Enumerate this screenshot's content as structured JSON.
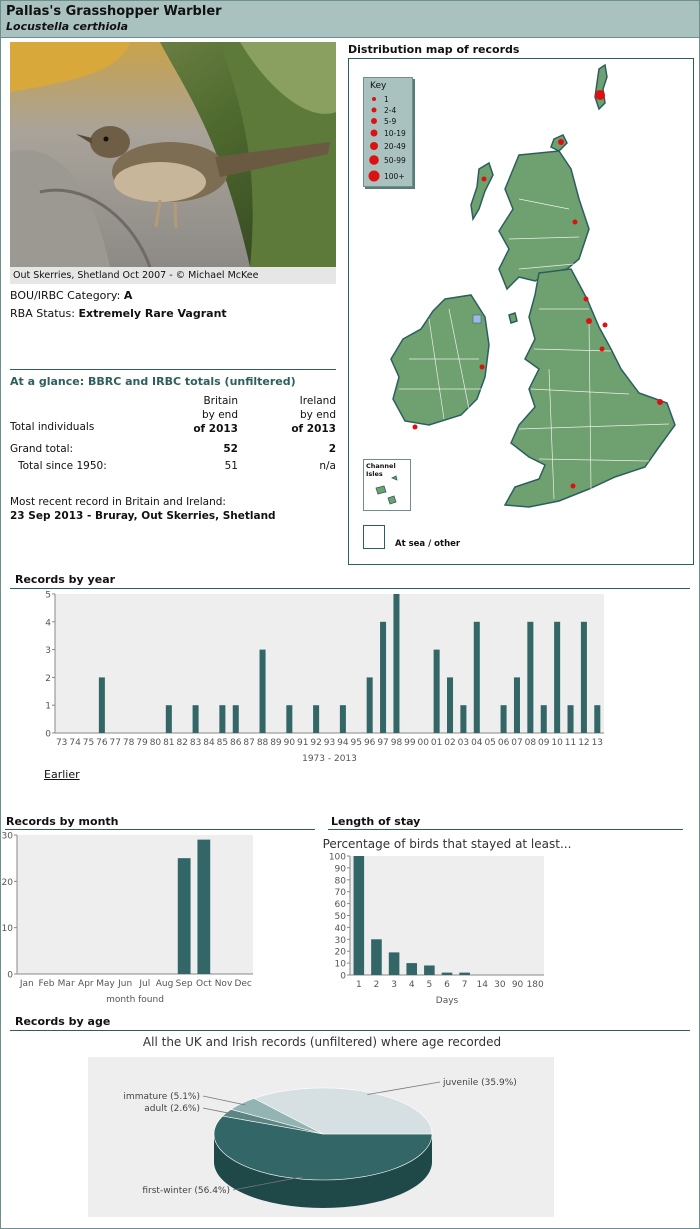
{
  "header": {
    "title": "Pallas's Grasshopper Warbler",
    "latin": "Locustella certhiola"
  },
  "photo": {
    "caption": "Out Skerries, Shetland Oct 2007 - © Michael McKee"
  },
  "category": {
    "label": "BOU/IRBC Category:",
    "value": "A"
  },
  "status": {
    "label": "RBA Status:",
    "value": "Extremely Rare Vagrant"
  },
  "glance": {
    "title": "At a glance: BBRC and IRBC totals (unfiltered)",
    "col_britain": [
      "Britain",
      "by end",
      "of 2013"
    ],
    "col_ireland": [
      "Ireland",
      "by end",
      "of 2013"
    ],
    "row_header": "Total individuals",
    "rows": [
      {
        "label": "Grand total:",
        "britain": "52",
        "ireland": "2"
      },
      {
        "label": "Total since 1950:",
        "britain": "51",
        "ireland": "n/a"
      }
    ],
    "recent_label": "Most recent record in Britain and Ireland:",
    "recent_value": "23 Sep 2013 - Bruray, Out Skerries, Shetland"
  },
  "map": {
    "title": "Distribution map of records",
    "key_title": "Key",
    "key_items": [
      "1",
      "2-4",
      "5-9",
      "10-19",
      "20-49",
      "50-99",
      "100+"
    ],
    "channel_label": "Channel Isles",
    "at_sea_label": "At sea / other",
    "colors": {
      "land": "#6fa06f",
      "border": "#2d5e5e",
      "dot": "#dd1111"
    }
  },
  "year_chart": {
    "title": "Records by year",
    "earlier_link": "Earlier"
  },
  "month_chart": {
    "title": "Records by month"
  },
  "stay_chart": {
    "title": "Length of stay"
  },
  "age_chart": {
    "title": "Records by age"
  },
  "chart_data": [
    {
      "type": "bar",
      "title": "",
      "xlabel": "1973 - 2013",
      "ylabel": "",
      "ylim": [
        0,
        5
      ],
      "yticks": [
        0,
        1,
        2,
        3,
        4,
        5
      ],
      "categories": [
        "73",
        "74",
        "75",
        "76",
        "77",
        "78",
        "79",
        "80",
        "81",
        "82",
        "83",
        "84",
        "85",
        "86",
        "87",
        "88",
        "89",
        "90",
        "91",
        "92",
        "93",
        "94",
        "95",
        "96",
        "97",
        "98",
        "99",
        "00",
        "01",
        "02",
        "03",
        "04",
        "05",
        "06",
        "07",
        "08",
        "09",
        "10",
        "11",
        "12",
        "13"
      ],
      "values": [
        0,
        0,
        0,
        2,
        0,
        0,
        0,
        0,
        1,
        0,
        1,
        0,
        1,
        1,
        0,
        3,
        0,
        1,
        0,
        1,
        0,
        1,
        0,
        2,
        4,
        5,
        0,
        0,
        3,
        2,
        1,
        4,
        0,
        1,
        2,
        4,
        1,
        4,
        1,
        4,
        1
      ],
      "color": "#336666",
      "grid": false
    },
    {
      "type": "bar",
      "title": "",
      "xlabel": "month found",
      "ylabel": "",
      "ylim": [
        0,
        30
      ],
      "yticks": [
        0,
        10,
        20,
        30
      ],
      "categories": [
        "Jan",
        "Feb",
        "Mar",
        "Apr",
        "May",
        "Jun",
        "Jul",
        "Aug",
        "Sep",
        "Oct",
        "Nov",
        "Dec"
      ],
      "values": [
        0,
        0,
        0,
        0,
        0,
        0,
        0,
        0,
        25,
        29,
        0,
        0
      ],
      "color": "#336666",
      "grid": false
    },
    {
      "type": "bar",
      "title": "Percentage of birds that stayed at least...",
      "xlabel": "Days",
      "ylabel": "",
      "ylim": [
        0,
        100
      ],
      "yticks": [
        0,
        10,
        20,
        30,
        40,
        50,
        60,
        70,
        80,
        90,
        100
      ],
      "categories": [
        "1",
        "2",
        "3",
        "4",
        "5",
        "6",
        "7",
        "14",
        "30",
        "90",
        "180"
      ],
      "values": [
        100,
        30,
        19,
        10,
        8,
        2,
        2,
        0,
        0,
        0,
        0
      ],
      "color": "#336666",
      "grid": false
    },
    {
      "type": "pie",
      "title": "All the UK and Irish records (unfiltered) where age recorded",
      "slices": [
        {
          "label": "first-winter (56.4%)",
          "value": 56.4,
          "color": "#336666"
        },
        {
          "label": "adult (2.6%)",
          "value": 2.6,
          "color": "#5c8584"
        },
        {
          "label": "immature (5.1%)",
          "value": 5.1,
          "color": "#94b3b3"
        },
        {
          "label": "juvenile (35.9%)",
          "value": 35.9,
          "color": "#d6e0e2"
        }
      ],
      "legend": "callouts"
    }
  ]
}
